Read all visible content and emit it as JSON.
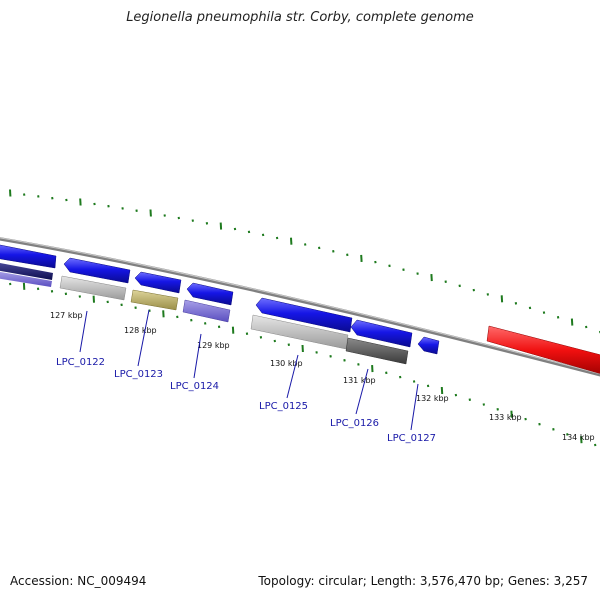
{
  "title": "Legionella pneumophila str. Corby, complete genome",
  "footer": {
    "accession": "Accession: NC_009494",
    "stats": "Topology: circular; Length: 3,576,470 bp; Genes: 3,257"
  },
  "ticks": [
    "127 kbp",
    "128 kbp",
    "129 kbp",
    "130 kbp",
    "131 kbp",
    "132 kbp",
    "133 kbp",
    "134 kbp"
  ],
  "genes": [
    "LPC_0122",
    "LPC_0123",
    "LPC_0124",
    "LPC_0125",
    "LPC_0126",
    "LPC_0127"
  ],
  "colors": {
    "gene_blue": "#1616e6",
    "backbone": "#808080",
    "tick_green": "#1e7a1e",
    "red_feature": "#f01010",
    "label_blue": "#1a1aa8"
  }
}
